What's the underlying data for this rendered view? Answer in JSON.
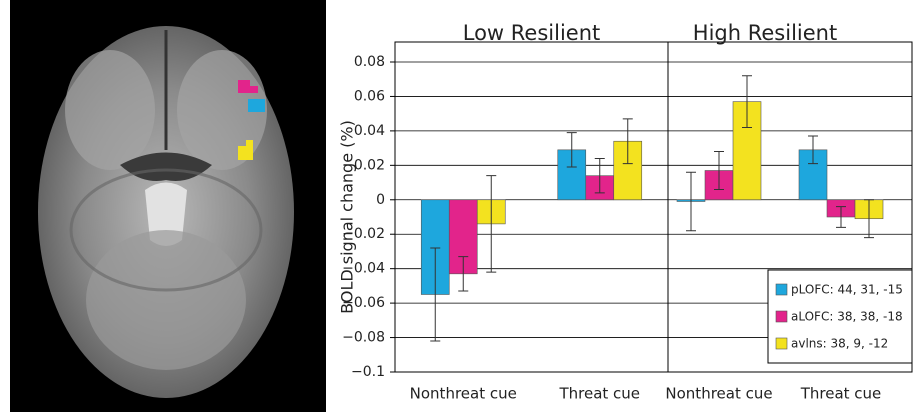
{
  "chart_data": {
    "type": "bar",
    "ylabel": "BOLD signal change (%)",
    "panels": [
      "Low Resilient",
      "High Resilient"
    ],
    "categories": [
      "Nonthreat cue",
      "Threat cue",
      "Nonthreat cue",
      "Threat cue"
    ],
    "series": [
      {
        "name": "pLOFC: 44, 31, -15",
        "color": "#1ea7dd",
        "values": [
          -0.055,
          0.029,
          -0.001,
          0.029
        ],
        "errors": [
          0.027,
          0.01,
          0.017,
          0.008
        ]
      },
      {
        "name": "aLOFC: 38, 38, -18",
        "color": "#e2248b",
        "values": [
          -0.043,
          0.014,
          0.017,
          -0.01
        ],
        "errors": [
          0.01,
          0.01,
          0.011,
          0.006
        ]
      },
      {
        "name": "avlns: 38, 9, -12",
        "color": "#f3e21f",
        "values": [
          -0.014,
          0.034,
          0.057,
          -0.011
        ],
        "errors": [
          0.028,
          0.013,
          0.015,
          0.011
        ]
      }
    ],
    "ylim": [
      -0.1,
      0.08
    ],
    "yticks": [
      0.08,
      0.06,
      0.04,
      0.02,
      0,
      {
        "value": -0.02,
        "label": "−0.02"
      },
      {
        "value": -0.04,
        "label": "−0.04"
      },
      {
        "value": -0.06,
        "label": "−0.06"
      },
      {
        "value": -0.08,
        "label": "−0.08"
      },
      {
        "value": -0.1,
        "label": "−0.1"
      }
    ],
    "grid": true,
    "legend": "lower right"
  }
}
